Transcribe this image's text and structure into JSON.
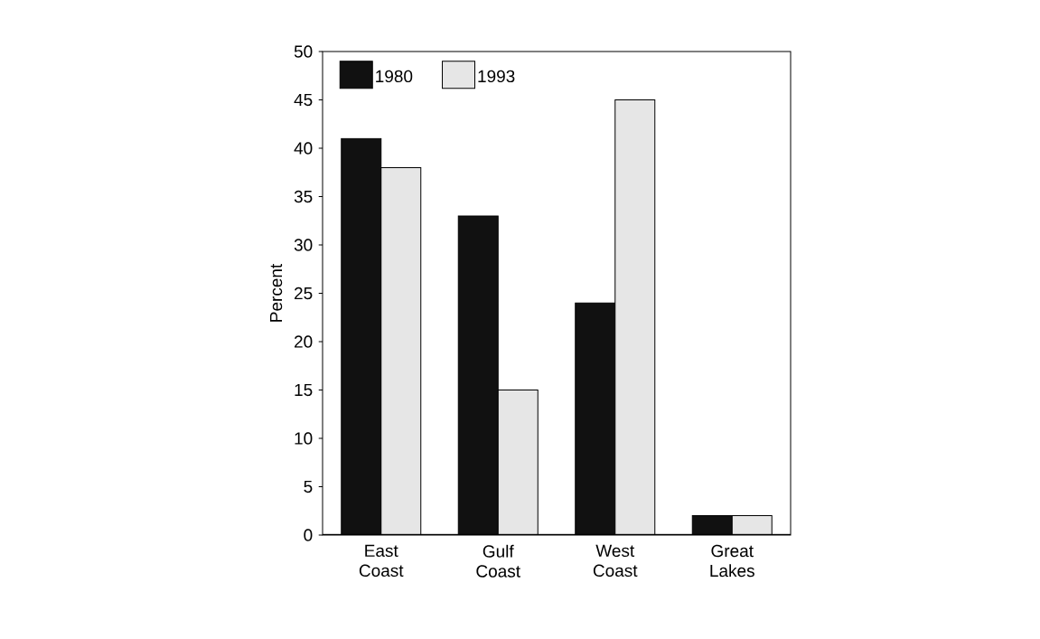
{
  "chart_data": {
    "type": "bar",
    "ylabel": "Percent",
    "categories": [
      "East\nCoast",
      "Gulf\nCoast",
      "West\nCoast",
      "Great\nLakes"
    ],
    "series": [
      {
        "name": "1980",
        "color": "#111111",
        "values": [
          41,
          33,
          24,
          2
        ]
      },
      {
        "name": "1993",
        "color": "#e6e6e6",
        "values": [
          38,
          15,
          45,
          2
        ]
      }
    ],
    "ylim": [
      0,
      50
    ],
    "yticks": [
      0,
      5,
      10,
      15,
      20,
      25,
      30,
      35,
      40,
      45,
      50
    ],
    "legend": "top left"
  }
}
